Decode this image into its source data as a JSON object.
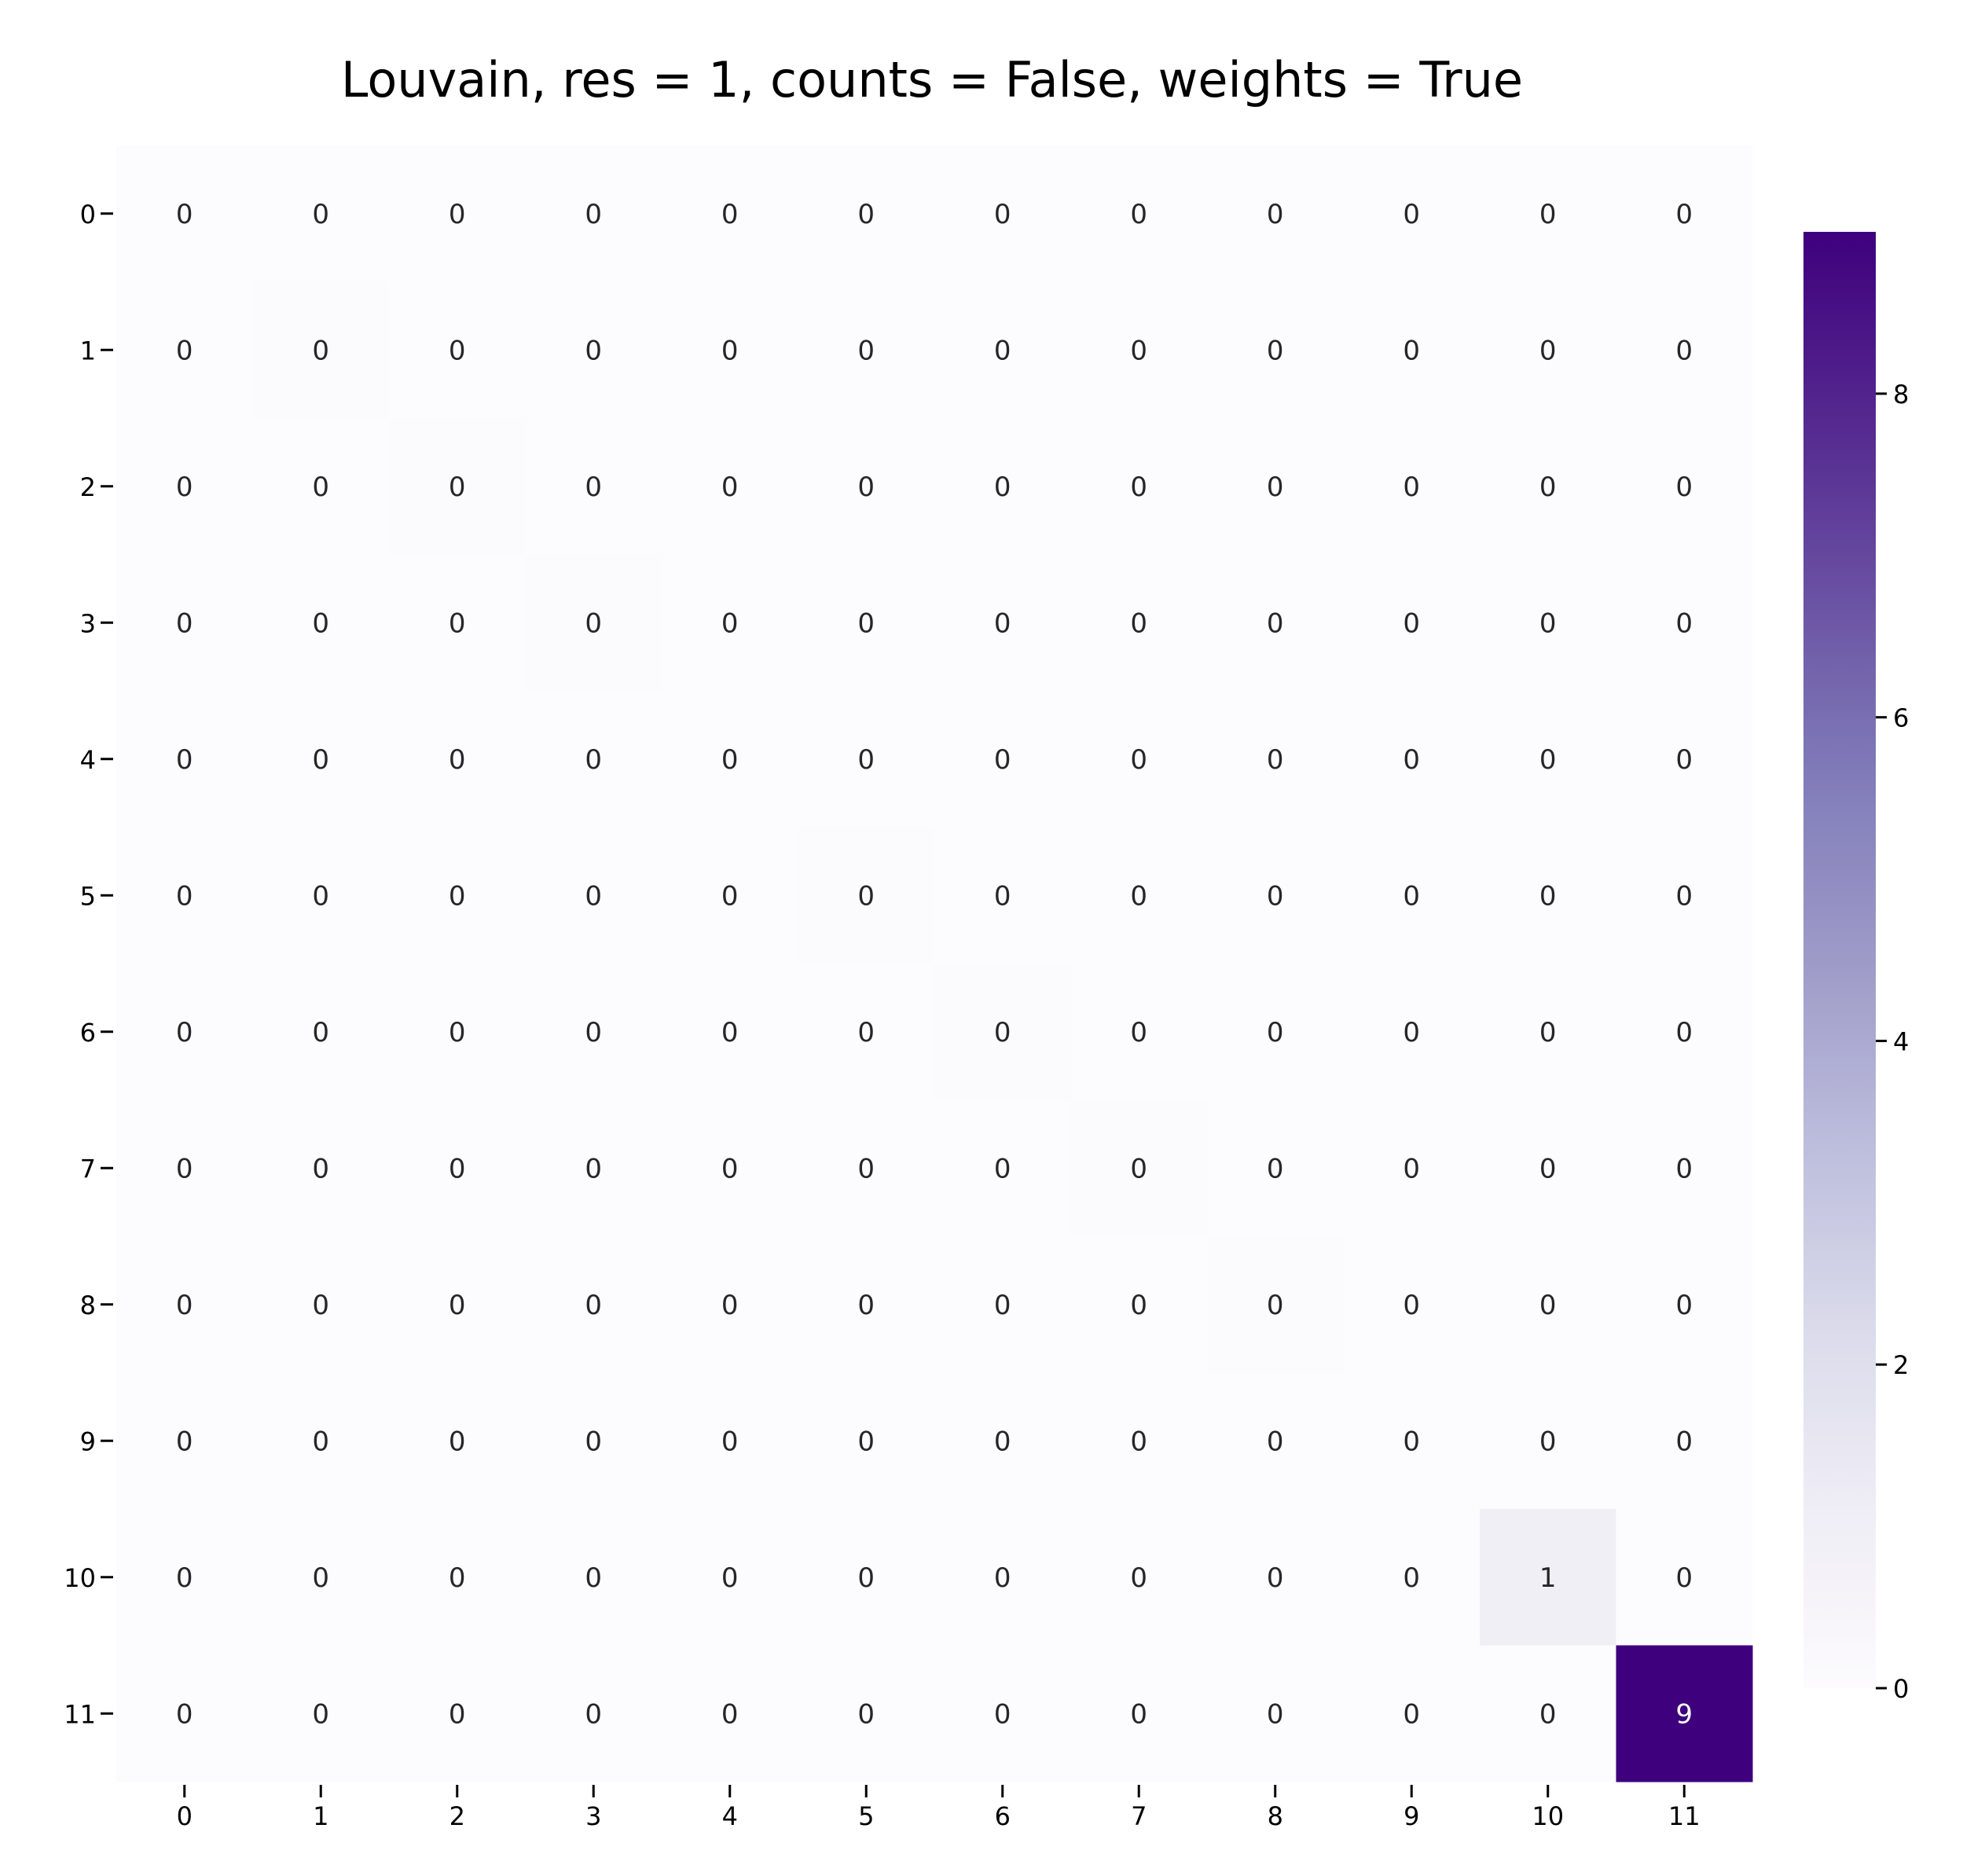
{
  "chart_data": {
    "type": "heatmap",
    "title": "Louvain, res = 1, counts = False, weights = True",
    "xlabel": "",
    "ylabel": "",
    "x_categories": [
      "0",
      "1",
      "2",
      "3",
      "4",
      "5",
      "6",
      "7",
      "8",
      "9",
      "10",
      "11"
    ],
    "y_categories": [
      "0",
      "1",
      "2",
      "3",
      "4",
      "5",
      "6",
      "7",
      "8",
      "9",
      "10",
      "11"
    ],
    "values": [
      [
        0.04,
        0,
        0,
        0,
        0,
        0,
        0,
        0,
        0,
        0,
        0,
        0
      ],
      [
        0,
        0.05,
        0,
        0,
        0,
        0,
        0,
        0,
        0,
        0,
        0,
        0
      ],
      [
        0,
        0,
        0.06,
        0,
        0,
        0,
        0,
        0,
        0,
        0,
        0,
        0
      ],
      [
        0,
        0,
        0,
        0.06,
        0,
        0,
        0,
        0,
        0,
        0,
        0,
        0
      ],
      [
        0,
        0,
        0,
        0,
        0,
        0,
        0,
        0,
        0,
        0,
        0,
        0
      ],
      [
        0,
        0,
        0,
        0,
        0,
        0.06,
        0,
        0,
        0,
        0,
        0,
        0
      ],
      [
        0,
        0,
        0,
        0,
        0,
        0,
        0.06,
        0,
        0,
        0,
        0,
        0
      ],
      [
        0,
        0,
        0,
        0,
        0,
        0,
        0,
        0.05,
        0,
        0,
        0,
        0
      ],
      [
        0,
        0,
        0,
        0,
        0,
        0,
        0,
        0,
        0.05,
        0,
        0,
        0
      ],
      [
        0,
        0,
        0,
        0,
        0,
        0,
        0,
        0,
        0,
        0,
        0,
        0
      ],
      [
        0,
        0,
        0,
        0,
        0,
        0,
        0,
        0,
        0,
        0,
        1,
        0
      ],
      [
        0,
        0,
        0,
        0,
        0,
        0,
        0,
        0,
        0,
        0,
        0,
        9
      ]
    ],
    "annotations": [
      [
        "0",
        "0",
        "0",
        "0",
        "0",
        "0",
        "0",
        "0",
        "0",
        "0",
        "0",
        "0"
      ],
      [
        "0",
        "0",
        "0",
        "0",
        "0",
        "0",
        "0",
        "0",
        "0",
        "0",
        "0",
        "0"
      ],
      [
        "0",
        "0",
        "0",
        "0",
        "0",
        "0",
        "0",
        "0",
        "0",
        "0",
        "0",
        "0"
      ],
      [
        "0",
        "0",
        "0",
        "0",
        "0",
        "0",
        "0",
        "0",
        "0",
        "0",
        "0",
        "0"
      ],
      [
        "0",
        "0",
        "0",
        "0",
        "0",
        "0",
        "0",
        "0",
        "0",
        "0",
        "0",
        "0"
      ],
      [
        "0",
        "0",
        "0",
        "0",
        "0",
        "0",
        "0",
        "0",
        "0",
        "0",
        "0",
        "0"
      ],
      [
        "0",
        "0",
        "0",
        "0",
        "0",
        "0",
        "0",
        "0",
        "0",
        "0",
        "0",
        "0"
      ],
      [
        "0",
        "0",
        "0",
        "0",
        "0",
        "0",
        "0",
        "0",
        "0",
        "0",
        "0",
        "0"
      ],
      [
        "0",
        "0",
        "0",
        "0",
        "0",
        "0",
        "0",
        "0",
        "0",
        "0",
        "0",
        "0"
      ],
      [
        "0",
        "0",
        "0",
        "0",
        "0",
        "0",
        "0",
        "0",
        "0",
        "0",
        "0",
        "0"
      ],
      [
        "0",
        "0",
        "0",
        "0",
        "0",
        "0",
        "0",
        "0",
        "0",
        "0",
        "1",
        "0"
      ],
      [
        "0",
        "0",
        "0",
        "0",
        "0",
        "0",
        "0",
        "0",
        "0",
        "0",
        "0",
        "9"
      ]
    ],
    "colormap": "Purples",
    "color_range": [
      0,
      9
    ],
    "colorbar": {
      "ticks": [
        0,
        2,
        4,
        6,
        8
      ],
      "tick_labels": [
        "0",
        "2",
        "4",
        "6",
        "8"
      ],
      "placement": "right"
    },
    "grid": false
  }
}
